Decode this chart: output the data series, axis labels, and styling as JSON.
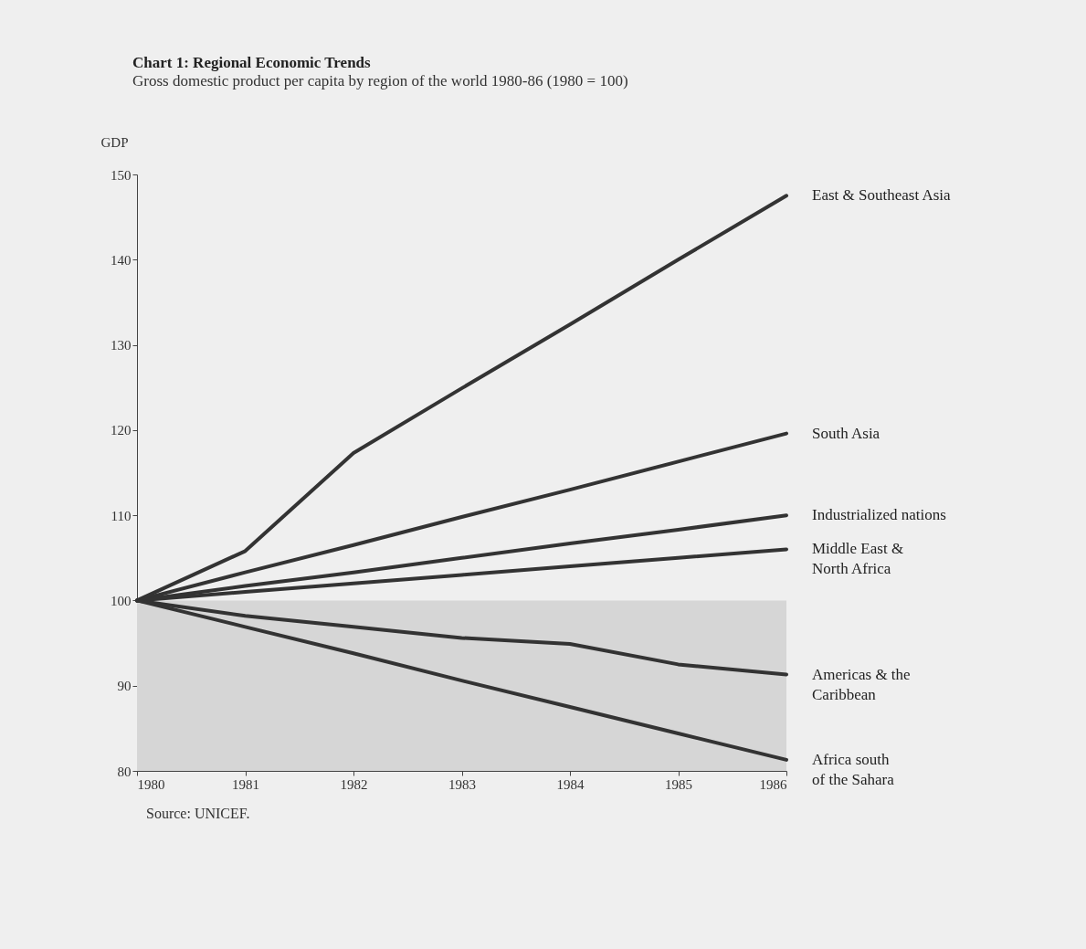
{
  "chart_data": {
    "type": "line",
    "title": "Chart 1: Regional Economic Trends",
    "subtitle": "Gross domestic product per capita by region of the world 1980-86 (1980 = 100)",
    "ylabel": "GDP",
    "x": [
      1980,
      1981,
      1982,
      1983,
      1984,
      1985,
      1986
    ],
    "xlim": [
      1980,
      1986
    ],
    "xticks": [
      1980,
      1981,
      1982,
      1983,
      1984,
      1985,
      1986
    ],
    "ylim": [
      80,
      150
    ],
    "yticks": [
      80,
      90,
      100,
      110,
      120,
      130,
      140,
      150
    ],
    "grid": false,
    "legend": false,
    "marker": "none",
    "line_style": "solid",
    "bands": [
      {
        "axis": "y",
        "from": 80,
        "to": 100,
        "color": "#d6d6d6"
      }
    ],
    "series": [
      {
        "name": "East & Southeast Asia",
        "color": "#333333",
        "values": [
          100,
          105.8,
          117.3,
          124.9,
          132.4,
          140,
          147.5
        ]
      },
      {
        "name": "South Asia",
        "color": "#333333",
        "values": [
          100,
          103.3,
          106.5,
          109.8,
          113,
          116.3,
          119.6
        ]
      },
      {
        "name": "Industrialized nations",
        "color": "#333333",
        "values": [
          100,
          101.7,
          103.3,
          105,
          106.7,
          108.3,
          110
        ]
      },
      {
        "name": "Middle East & North Africa",
        "color": "#333333",
        "values": [
          100,
          101,
          102,
          103,
          104,
          105,
          106
        ]
      },
      {
        "name": "Americas & the Caribbean",
        "color": "#333333",
        "values": [
          100,
          98.2,
          96.9,
          95.6,
          94.9,
          92.5,
          91.3
        ]
      },
      {
        "name": "Africa south of the Sahara",
        "color": "#333333",
        "values": [
          100,
          96.9,
          93.8,
          90.6,
          87.5,
          84.4,
          81.3
        ]
      }
    ],
    "annotations": [
      "Source: UNICEF."
    ]
  }
}
